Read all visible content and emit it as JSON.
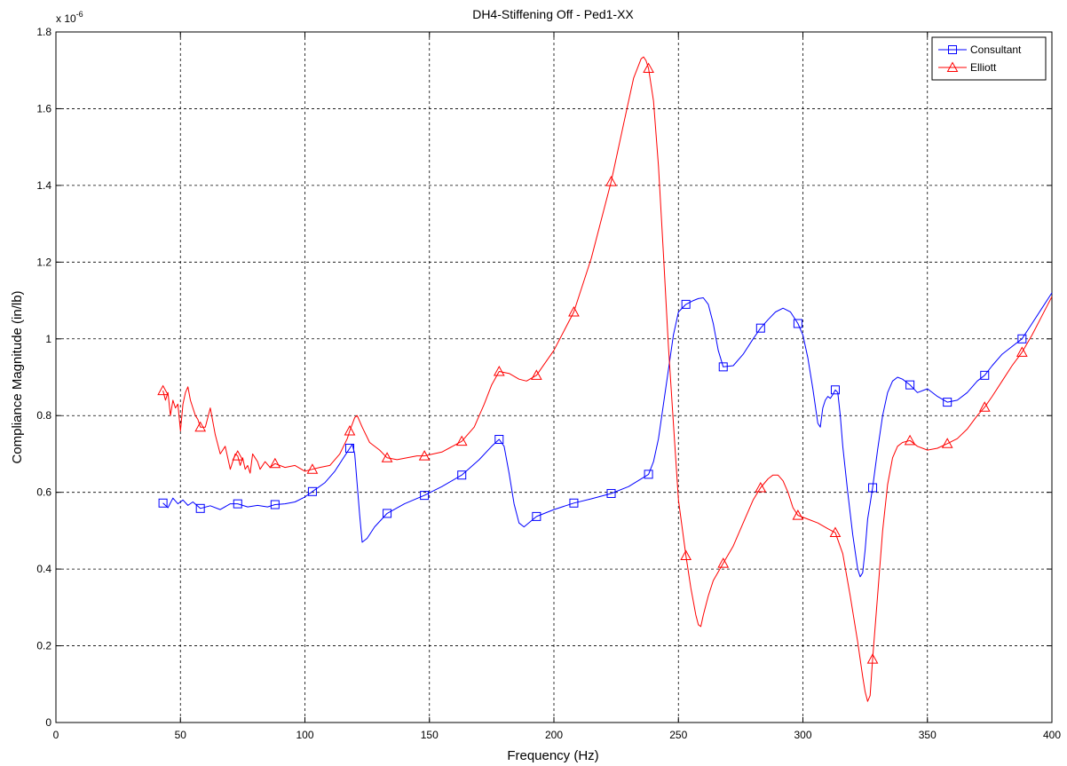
{
  "chart_data": {
    "type": "line",
    "title": "DH4-Stiffening Off - Ped1-XX",
    "xlabel": "Frequency (Hz)",
    "ylabel": "Compliance Magnitude (in/lb)",
    "y_exponent_label": "x 10",
    "y_exponent": "-6",
    "xlim": [
      0,
      400
    ],
    "ylim": [
      0,
      1.8
    ],
    "xticks": [
      0,
      50,
      100,
      150,
      200,
      250,
      300,
      350,
      400
    ],
    "yticks": [
      0,
      0.2,
      0.4,
      0.6,
      0.8,
      1,
      1.2,
      1.4,
      1.6,
      1.8
    ],
    "grid": true,
    "legend_position": "top-right",
    "series": [
      {
        "name": "Consultant",
        "color": "#0000ff",
        "marker": "square",
        "marker_x": [
          43,
          58,
          73,
          88,
          103,
          118,
          133,
          148,
          163,
          178,
          193,
          208,
          223,
          238,
          253,
          268,
          283,
          298,
          313,
          328,
          343,
          358,
          373,
          388
        ],
        "x": [
          43,
          45,
          47,
          49,
          51,
          53,
          55,
          58,
          62,
          66,
          70,
          73,
          77,
          81,
          85,
          88,
          92,
          96,
          100,
          103,
          108,
          112,
          115,
          117,
          118,
          119,
          120,
          121,
          122,
          123,
          125,
          128,
          133,
          140,
          148,
          155,
          163,
          170,
          175,
          178,
          180,
          182,
          184,
          186,
          188,
          193,
          200,
          208,
          215,
          223,
          230,
          238,
          240,
          242,
          244,
          246,
          248,
          250,
          253,
          256,
          258,
          260,
          262,
          264,
          266,
          268,
          272,
          276,
          280,
          283,
          286,
          289,
          292,
          295,
          298,
          300,
          302,
          304,
          306,
          307,
          308,
          309,
          310,
          311,
          312,
          313,
          314,
          315,
          316,
          318,
          320,
          322,
          323,
          324,
          325,
          326,
          327,
          328,
          330,
          332,
          334,
          336,
          338,
          340,
          343,
          346,
          350,
          354,
          358,
          362,
          366,
          370,
          373,
          376,
          380,
          384,
          388,
          392,
          396,
          400
        ],
        "y": [
          0.572,
          0.56,
          0.585,
          0.57,
          0.58,
          0.566,
          0.575,
          0.558,
          0.565,
          0.555,
          0.57,
          0.57,
          0.562,
          0.566,
          0.562,
          0.568,
          0.57,
          0.575,
          0.588,
          0.602,
          0.625,
          0.655,
          0.685,
          0.705,
          0.715,
          0.725,
          0.7,
          0.62,
          0.54,
          0.47,
          0.48,
          0.51,
          0.545,
          0.57,
          0.592,
          0.615,
          0.645,
          0.685,
          0.72,
          0.738,
          0.72,
          0.65,
          0.57,
          0.52,
          0.51,
          0.537,
          0.555,
          0.572,
          0.583,
          0.597,
          0.615,
          0.647,
          0.68,
          0.74,
          0.83,
          0.92,
          1.01,
          1.07,
          1.09,
          1.1,
          1.105,
          1.107,
          1.09,
          1.04,
          0.97,
          0.927,
          0.93,
          0.96,
          1.0,
          1.028,
          1.05,
          1.07,
          1.08,
          1.07,
          1.04,
          1.01,
          0.95,
          0.87,
          0.78,
          0.77,
          0.82,
          0.84,
          0.85,
          0.845,
          0.855,
          0.867,
          0.86,
          0.8,
          0.72,
          0.6,
          0.49,
          0.4,
          0.38,
          0.39,
          0.45,
          0.53,
          0.57,
          0.612,
          0.71,
          0.8,
          0.86,
          0.89,
          0.9,
          0.895,
          0.88,
          0.86,
          0.87,
          0.85,
          0.835,
          0.84,
          0.86,
          0.89,
          0.905,
          0.93,
          0.96,
          0.98,
          1.0,
          1.04,
          1.08,
          1.12
        ]
      },
      {
        "name": "Elliott",
        "color": "#ff0000",
        "marker": "triangle",
        "marker_x": [
          43,
          58,
          73,
          88,
          103,
          118,
          133,
          148,
          163,
          178,
          193,
          208,
          223,
          238,
          253,
          268,
          283,
          298,
          313,
          328,
          343,
          358,
          373,
          388
        ],
        "x": [
          43,
          44,
          45,
          46,
          47,
          48,
          49,
          50,
          51,
          52,
          53,
          54,
          55,
          56,
          57,
          58,
          60,
          62,
          64,
          66,
          68,
          70,
          72,
          73,
          74,
          75,
          76,
          77,
          78,
          79,
          80,
          81,
          82,
          84,
          86,
          88,
          92,
          96,
          100,
          103,
          106,
          110,
          114,
          117,
          118,
          120,
          121,
          123,
          126,
          130,
          133,
          137,
          141,
          145,
          148,
          155,
          163,
          168,
          172,
          175,
          178,
          182,
          186,
          189,
          193,
          200,
          208,
          215,
          223,
          228,
          232,
          235,
          236,
          237,
          238,
          240,
          242,
          244,
          246,
          248,
          250,
          253,
          255,
          257,
          258,
          259,
          260,
          262,
          264,
          268,
          272,
          276,
          280,
          283,
          286,
          288,
          290,
          292,
          294,
          296,
          298,
          302,
          306,
          310,
          313,
          316,
          319,
          322,
          324,
          325,
          326,
          327,
          328,
          330,
          332,
          334,
          336,
          338,
          340,
          343,
          346,
          350,
          354,
          358,
          362,
          366,
          370,
          373,
          376,
          380,
          384,
          388,
          392,
          396,
          400
        ],
        "y": [
          0.865,
          0.84,
          0.86,
          0.8,
          0.84,
          0.82,
          0.83,
          0.76,
          0.83,
          0.86,
          0.875,
          0.84,
          0.82,
          0.8,
          0.79,
          0.77,
          0.77,
          0.82,
          0.75,
          0.7,
          0.72,
          0.66,
          0.7,
          0.695,
          0.67,
          0.69,
          0.66,
          0.67,
          0.65,
          0.7,
          0.69,
          0.68,
          0.66,
          0.68,
          0.665,
          0.675,
          0.665,
          0.67,
          0.655,
          0.66,
          0.665,
          0.67,
          0.7,
          0.74,
          0.76,
          0.795,
          0.8,
          0.77,
          0.73,
          0.71,
          0.69,
          0.685,
          0.69,
          0.695,
          0.695,
          0.705,
          0.733,
          0.77,
          0.83,
          0.88,
          0.915,
          0.91,
          0.895,
          0.89,
          0.905,
          0.97,
          1.07,
          1.21,
          1.41,
          1.56,
          1.68,
          1.73,
          1.735,
          1.725,
          1.705,
          1.62,
          1.45,
          1.22,
          0.98,
          0.78,
          0.58,
          0.435,
          0.35,
          0.28,
          0.255,
          0.25,
          0.28,
          0.33,
          0.37,
          0.415,
          0.46,
          0.52,
          0.58,
          0.612,
          0.635,
          0.645,
          0.645,
          0.63,
          0.6,
          0.56,
          0.54,
          0.53,
          0.52,
          0.505,
          0.495,
          0.44,
          0.33,
          0.21,
          0.12,
          0.08,
          0.055,
          0.07,
          0.165,
          0.33,
          0.5,
          0.62,
          0.69,
          0.72,
          0.73,
          0.735,
          0.72,
          0.71,
          0.715,
          0.727,
          0.74,
          0.765,
          0.8,
          0.822,
          0.85,
          0.89,
          0.93,
          0.965,
          1.01,
          1.06,
          1.11
        ]
      }
    ]
  }
}
